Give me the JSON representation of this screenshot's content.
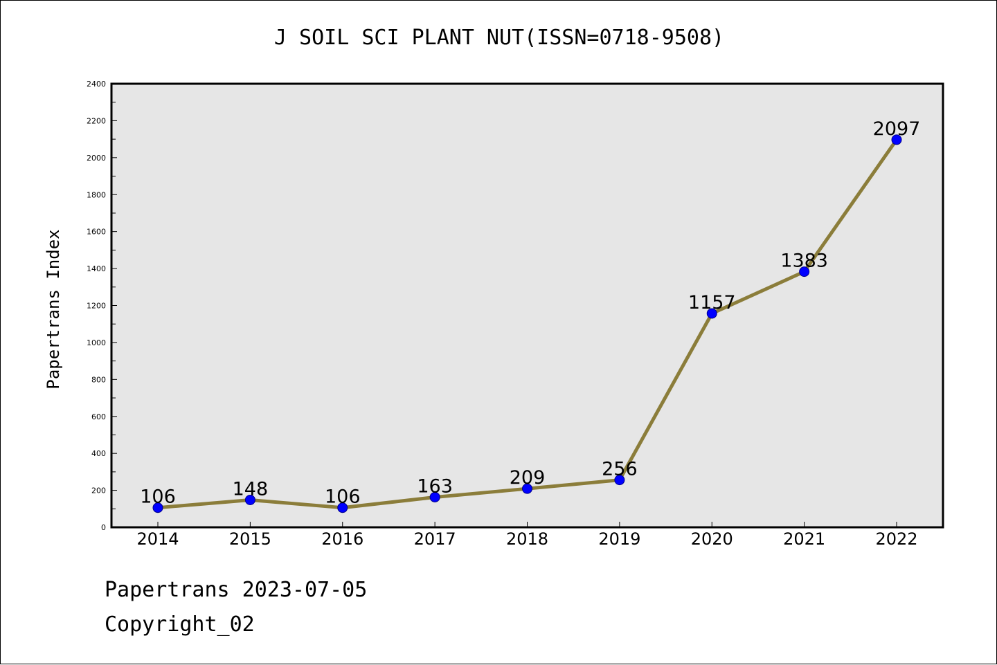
{
  "header": {
    "title": "J SOIL SCI PLANT NUT(ISSN=0718-9508)"
  },
  "footer": {
    "date_line": "Papertrans 2023-07-05",
    "copyright": "Copyright_02"
  },
  "colors": {
    "plot_background": "#e6e6e6",
    "line": "#8b7d3a",
    "marker": "#0000ff",
    "axis": "#000000"
  },
  "chart_data": {
    "type": "line",
    "title": "J SOIL SCI PLANT NUT(ISSN=0718-9508)",
    "xlabel": "",
    "ylabel": "Papertrans Index",
    "categories": [
      "2014",
      "2015",
      "2016",
      "2017",
      "2018",
      "2019",
      "2020",
      "2021",
      "2022"
    ],
    "series": [
      {
        "values": [
          106,
          148,
          106,
          163,
          209,
          256,
          1157,
          1383,
          2097
        ]
      }
    ],
    "data_labels": [
      "106",
      "148",
      "106",
      "163",
      "209",
      "256",
      "1157",
      "1383",
      "2097"
    ],
    "ylim": [
      0,
      2400
    ],
    "yticks": [
      0,
      200,
      400,
      600,
      800,
      1000,
      1200,
      1400,
      1600,
      1800,
      2000,
      2200,
      2400
    ],
    "ytick_labels": [
      "0",
      "200",
      "400",
      "600",
      "800",
      "1000",
      "1200",
      "1400",
      "1600",
      "1800",
      "2000",
      "2200",
      "2400"
    ],
    "grid": false,
    "legend": "none"
  }
}
